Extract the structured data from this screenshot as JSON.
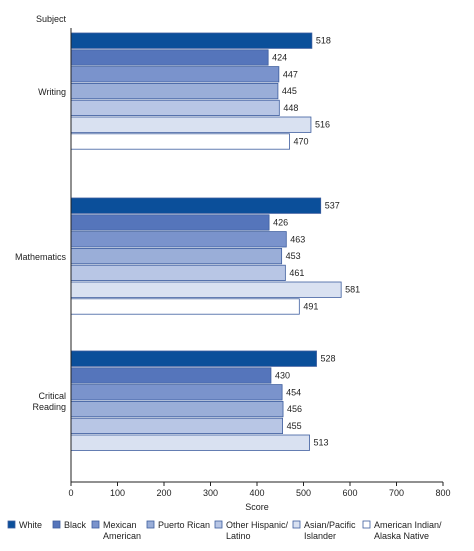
{
  "chart_data": {
    "type": "bar",
    "orientation": "horizontal",
    "ylabel": "Subject",
    "xlabel": "Score",
    "xlim": [
      0,
      800
    ],
    "xticks": [
      0,
      100,
      200,
      300,
      400,
      500,
      600,
      700,
      800
    ],
    "grid": false,
    "legend_position": "bottom",
    "categories": [
      "Writing",
      "Mathematics",
      "Critical Reading"
    ],
    "category_labels": [
      [
        "Writing"
      ],
      [
        "Mathematics"
      ],
      [
        "Critical",
        "Reading"
      ]
    ],
    "series": [
      {
        "name": "White",
        "legend_lines": [
          "White"
        ],
        "color": "#0b4f9a",
        "values": [
          518,
          537,
          528
        ]
      },
      {
        "name": "Black",
        "legend_lines": [
          "Black"
        ],
        "color": "#5575bb",
        "values": [
          424,
          426,
          430
        ]
      },
      {
        "name": "Mexican American",
        "legend_lines": [
          "Mexican",
          "American"
        ],
        "color": "#7a93cc",
        "values": [
          447,
          463,
          454
        ]
      },
      {
        "name": "Puerto Rican",
        "legend_lines": [
          "Puerto Rican"
        ],
        "color": "#9aaed8",
        "values": [
          445,
          453,
          456
        ]
      },
      {
        "name": "Other Hispanic/ Latino",
        "legend_lines": [
          "Other Hispanic/",
          "Latino"
        ],
        "color": "#b8c6e5",
        "values": [
          448,
          461,
          455
        ]
      },
      {
        "name": "Asian/Pacific Islander",
        "legend_lines": [
          "Asian/Pacific",
          "Islander"
        ],
        "color": "#d9e1f1",
        "values": [
          516,
          581,
          513
        ]
      },
      {
        "name": "American Indian/ Alaska Native",
        "legend_lines": [
          "American Indian/",
          "Alaska Native"
        ],
        "color": "#ffffff",
        "values": [
          470,
          491,
          null
        ]
      }
    ]
  }
}
